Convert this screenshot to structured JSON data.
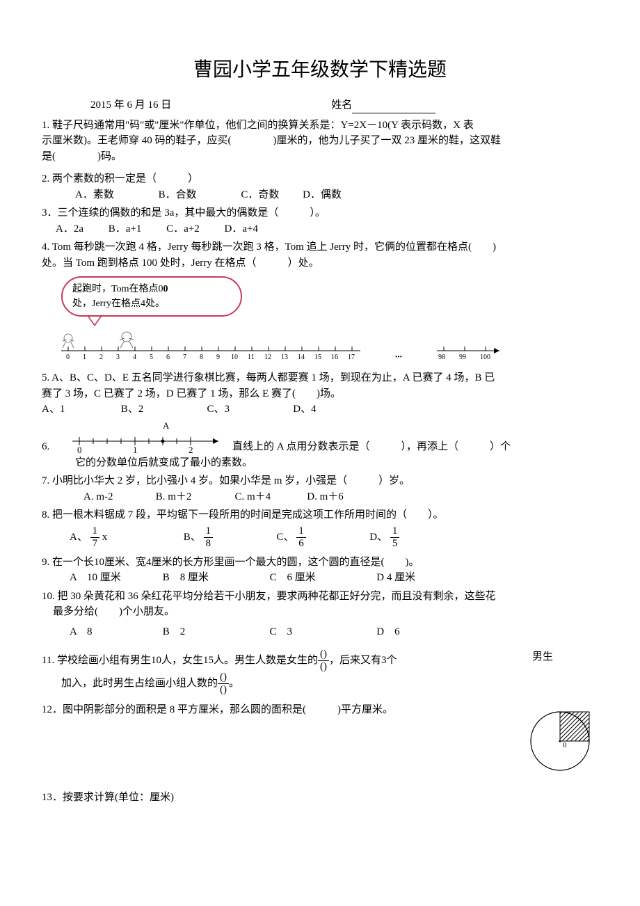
{
  "title": "曹园小学五年级数学下精选题",
  "meta": {
    "date": "2015 年 6 月 16 日",
    "name_label": "姓名"
  },
  "q1": {
    "line1": "1. 鞋子尺码通常用\"码\"或\"厘米\"作单位，他们之间的换算关系是：Y=2X－10(Y 表示码数，X 表",
    "line2": "示厘米数)。王老师穿 40 码的鞋子，应买(　　　　)厘米的，他为儿子买了一双 23 厘米的鞋，这双鞋",
    "line3": "是(　　　　)码。"
  },
  "q2": {
    "text": "2. 两个素数的积一定是（　　　）",
    "a": "A．素数",
    "b": "B．合数",
    "c": "C．奇数",
    "d": "D．偶数"
  },
  "q3": {
    "text": "3．三个连续的偶数的和是 3a，其中最大的偶数是（　　　）。",
    "a": "A．2a",
    "b": "B．a+1",
    "c": "C．a+2",
    "d": "D．a+4"
  },
  "q4": {
    "line1": "4. Tom 每秒跳一次跑 4 格，Jerry 每秒跳一次跑 3 格，Tom 追上 Jerry 时，它俩的位置都在格点(　　)",
    "line2": "处。当 Tom 跑到格点 100 处时，Jerry 在格点（　　　）处。",
    "bubble_l1": "起跑时，Tom在格点0",
    "bubble_l2": "处，Jerry在格点4处。"
  },
  "ruler": {
    "ticks_left": [
      "0",
      "1",
      "2",
      "3",
      "4",
      "5",
      "6",
      "7",
      "8",
      "9",
      "10",
      "11",
      "12",
      "13",
      "14",
      "15",
      "16",
      "17"
    ],
    "ticks_right": [
      "98",
      "99",
      "100"
    ]
  },
  "q5": {
    "line1": "5. A、B、C、D、E 五名同学进行象棋比赛，每两人都要赛 1 场，到现在为止，A 已赛了 4 场，B 已",
    "line2": "赛了 3 场，C 已赛了 2 场，D 已赛了 1 场，那么 E 赛了(　　)场。",
    "a": "A、1",
    "b": "B、2",
    "c": "C、3",
    "d": "D、4"
  },
  "q6": {
    "prefix": "6.",
    "nl_labels": [
      "0",
      "1",
      "2"
    ],
    "nl_A": "A",
    "text1": "直线上的 A 点用分数表示是（　　　），再添上（　　　）个",
    "text2": "它的分数单位后就变成了最小的素数。"
  },
  "q7": {
    "text": "7. 小明比小华大 2 岁，比小强小 4 岁。如果小华是 m 岁，小强是（　　　）岁。",
    "a": "A. m-2",
    "b": "B. m＋2",
    "c": "C. m＋4",
    "d": "D. m＋6"
  },
  "q8": {
    "text": "8. 把一根木料锯成 7 段，平均锯下一段所用的时间是完成这项工作所用时间的（　　）。",
    "a_label": "A、",
    "a_num": "1",
    "a_den": "7",
    "a_tail": " x",
    "b_label": "B、",
    "b_num": "1",
    "b_den": "8",
    "c_label": "C、",
    "c_num": "1",
    "c_den": "6",
    "d_label": "D、",
    "d_num": "1",
    "d_den": "5"
  },
  "q9": {
    "text": "9. 在一个长10厘米、宽4厘米的长方形里画一个最大的圆，这个圆的直径是(　　)。",
    "a": "A　10 厘米",
    "b": "B　8 厘米",
    "c": "C　6 厘米",
    "d": "D 4 厘米"
  },
  "q10": {
    "line1": "10. 把 30 朵黄花和 36 朵红花平均分给若干小朋友，要求两种花都正好分完，而且没有剩余，这些花",
    "line2": "最多分给(　　)个小朋友。",
    "a": "A　8",
    "b": "B　2",
    "c": "C　3",
    "d": "D　6"
  },
  "q11": {
    "part1": "11. 学校绘画小组有男生10人，女生15人。男生人数是女生的",
    "f1_num": "()",
    "f1_den": "()",
    "part2": "，后来又有3个",
    "side_label": "男生",
    "line2a": "加入，此时男生占绘画小组人数的",
    "f2_num": "()",
    "f2_den": "()",
    "line2b": "。"
  },
  "q12": {
    "text": "12．图中阴影部分的面积是 8 平方厘米，那么圆的面积是(　　　)平方厘米。"
  },
  "q13": {
    "text": "13．按要求计算(单位：厘米)"
  },
  "circle": {
    "center_label": "0"
  },
  "colors": {
    "text": "#000000",
    "bubble_border": "#c83a5a",
    "hatch": "#000000"
  }
}
